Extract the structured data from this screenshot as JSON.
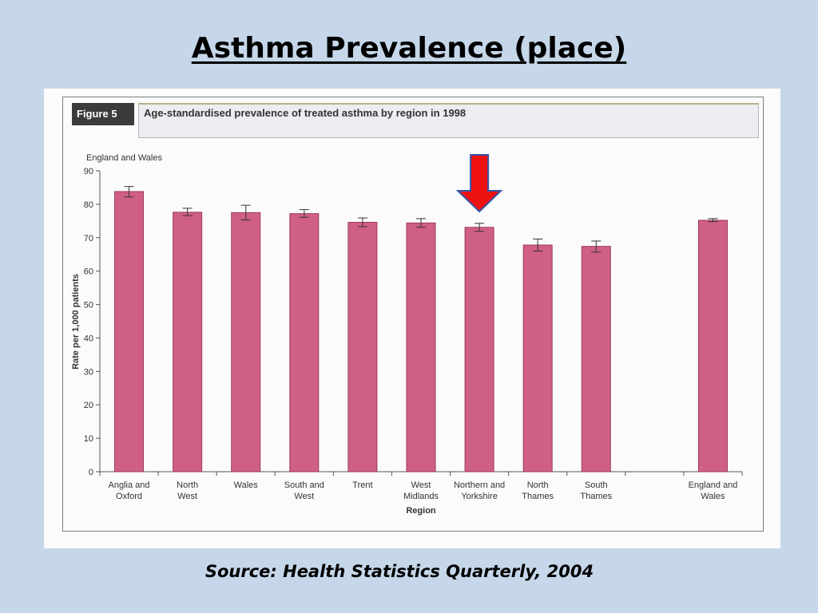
{
  "slide": {
    "title": "Asthma Prevalence (place)",
    "source": "Source: Health Statistics Quarterly, 2004"
  },
  "figure": {
    "label": "Figure 5",
    "caption": "Age-standardised prevalence of treated asthma by region in 1998"
  },
  "chart_data": {
    "type": "bar",
    "subtitle": "England and Wales",
    "xlabel": "Region",
    "ylabel": "Rate per 1,000 patients",
    "ylim": [
      0,
      90
    ],
    "yticks": [
      0,
      10,
      20,
      30,
      40,
      50,
      60,
      70,
      80,
      90
    ],
    "categories": [
      [
        "Anglia and",
        "Oxford"
      ],
      [
        "North",
        "West"
      ],
      [
        "Wales"
      ],
      [
        "South and",
        "West"
      ],
      [
        "Trent"
      ],
      [
        "West",
        "Midlands"
      ],
      [
        "Northern and",
        "Yorkshire"
      ],
      [
        "North",
        "Thames"
      ],
      [
        "South",
        "Thames"
      ],
      [],
      [
        "England and",
        "Wales"
      ]
    ],
    "values": [
      83.8,
      77.6,
      77.5,
      77.2,
      74.6,
      74.4,
      73.1,
      67.8,
      67.4,
      null,
      75.2
    ],
    "error_low": [
      82.2,
      76.6,
      75.3,
      76.1,
      73.3,
      73.1,
      71.9,
      66.0,
      65.7,
      null,
      74.8
    ],
    "error_high": [
      85.3,
      78.8,
      79.7,
      78.4,
      75.9,
      75.7,
      74.3,
      69.6,
      69.0,
      null,
      75.7
    ],
    "highlighted_category": "Northern and Yorkshire",
    "colors": {
      "bar": "#d05f85",
      "bar_edge": "#9c3a5d",
      "axis": "#555555",
      "arrow": "#ee1111",
      "arrow_edge": "#3355aa"
    }
  }
}
